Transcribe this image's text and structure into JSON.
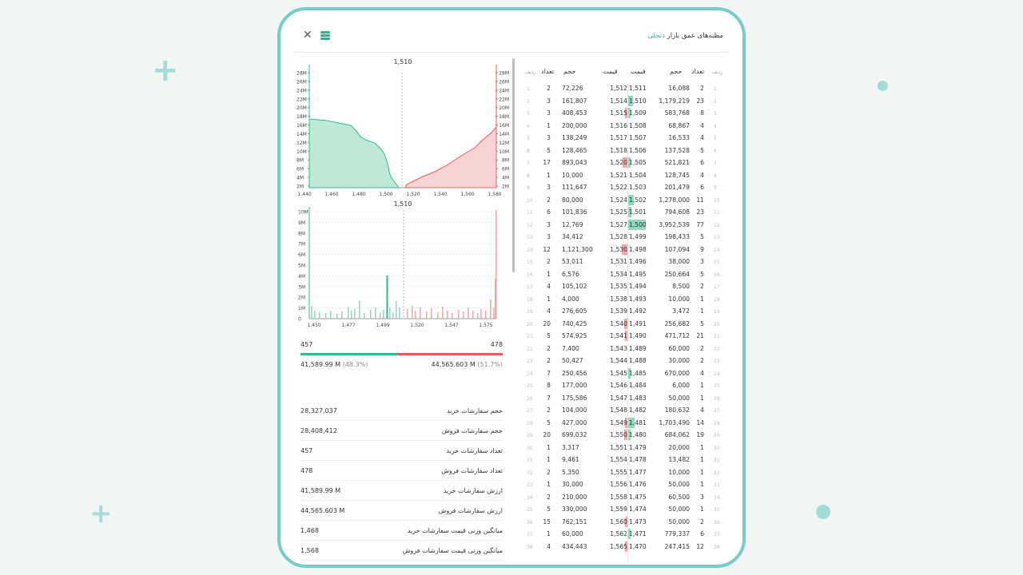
{
  "header": {
    "title_main": "مظنه‌های عمق بازار",
    "title_accent": "دنجلی"
  },
  "colors": {
    "buy": "#2ebd8b",
    "sell": "#e65c5c",
    "accent": "#77ccca"
  },
  "depth_chart": {
    "title": "1,510",
    "y_ticks": [
      "28M",
      "26M",
      "24M",
      "22M",
      "20M",
      "18M",
      "16M",
      "14M",
      "12M",
      "10M",
      "8M",
      "6M",
      "4M",
      "2M"
    ],
    "x_ticks": [
      "1,440",
      "1,460",
      "1,480",
      "1,500",
      "1,520",
      "1,540",
      "1,560",
      "1,580"
    ]
  },
  "volume_chart": {
    "title": "1,510",
    "y_ticks": [
      "10M",
      "9M",
      "8M",
      "7M",
      "6M",
      "5M",
      "4M",
      "3M",
      "2M",
      "1M",
      "0"
    ],
    "x_ticks": [
      "1,450",
      "1,477",
      "1,499",
      "1,520",
      "1,547",
      "1,575"
    ]
  },
  "summary": {
    "buy_count": "457",
    "sell_count": "478",
    "buy_value": "41,589.99 M",
    "buy_pct": "(48.3%)",
    "sell_value": "44,565.603 M",
    "sell_pct": "(51.7%)",
    "buy_ratio": 0.483
  },
  "stats": [
    {
      "label": "حجم سفارشات خرید",
      "value": "28,327,037"
    },
    {
      "label": "حجم سفارشات فروش",
      "value": "28,408,412"
    },
    {
      "label": "تعداد سفارشات خرید",
      "value": "457"
    },
    {
      "label": "تعداد سفارشات فروش",
      "value": "478"
    },
    {
      "label": "ارزش سفارشات خرید",
      "value": "41,589.99 M"
    },
    {
      "label": "ارزش سفارشات فروش",
      "value": "44,565.603 M"
    },
    {
      "label": "میانگین وزنی قیمت سفارشات خرید",
      "value": "1,468"
    },
    {
      "label": "میانگین وزنی قیمت سفارشات فروش",
      "value": "1,568"
    }
  ],
  "book_headers": {
    "sell_idx": "ردیف",
    "sell_count": "تعداد",
    "sell_volume": "حجم",
    "sell_price": "قیمت",
    "buy_price": "قیمت",
    "buy_volume": "حجم",
    "buy_count": "تعداد",
    "buy_idx": "ردیف"
  },
  "order_book": [
    {
      "i": "1",
      "sc": "2",
      "sv": "72,226",
      "sp": "1,512",
      "bp": "1,511",
      "bv": "16,088",
      "bc": "2",
      "sw": 0,
      "bw": 0
    },
    {
      "i": "2",
      "sc": "3",
      "sv": "161,807",
      "sp": "1,514",
      "bp": "1,510",
      "bv": "1,179,219",
      "bc": "23",
      "sw": 0,
      "bw": 6
    },
    {
      "i": "3",
      "sc": "3",
      "sv": "408,453",
      "sp": "1,515",
      "bp": "1,509",
      "bv": "583,768",
      "bc": "8",
      "sw": 3,
      "bw": 3
    },
    {
      "i": "4",
      "sc": "1",
      "sv": "200,000",
      "sp": "1,516",
      "bp": "1,508",
      "bv": "68,867",
      "bc": "4",
      "sw": 0,
      "bw": 0
    },
    {
      "i": "5",
      "sc": "3",
      "sv": "138,249",
      "sp": "1,517",
      "bp": "1,507",
      "bv": "16,533",
      "bc": "4",
      "sw": 0,
      "bw": 0
    },
    {
      "i": "6",
      "sc": "5",
      "sv": "128,465",
      "sp": "1,518",
      "bp": "1,506",
      "bv": "137,528",
      "bc": "5",
      "sw": 0,
      "bw": 0
    },
    {
      "i": "7",
      "sc": "17",
      "sv": "893,043",
      "sp": "1,520",
      "bp": "1,505",
      "bv": "521,821",
      "bc": "6",
      "sw": 6,
      "bw": 3
    },
    {
      "i": "8",
      "sc": "1",
      "sv": "10,000",
      "sp": "1,521",
      "bp": "1,504",
      "bv": "128,745",
      "bc": "4",
      "sw": 0,
      "bw": 0
    },
    {
      "i": "9",
      "sc": "3",
      "sv": "111,647",
      "sp": "1,522",
      "bp": "1,503",
      "bv": "201,479",
      "bc": "6",
      "sw": 0,
      "bw": 0
    },
    {
      "i": "10",
      "sc": "2",
      "sv": "80,000",
      "sp": "1,524",
      "bp": "1,502",
      "bv": "1,278,000",
      "bc": "11",
      "sw": 0,
      "bw": 7
    },
    {
      "i": "11",
      "sc": "6",
      "sv": "101,836",
      "sp": "1,525",
      "bp": "1,501",
      "bv": "794,608",
      "bc": "23",
      "sw": 0,
      "bw": 4
    },
    {
      "i": "12",
      "sc": "3",
      "sv": "12,769",
      "sp": "1,527",
      "bp": "1,500",
      "bv": "3,952,539",
      "bc": "77",
      "sw": 0,
      "bw": 22
    },
    {
      "i": "13",
      "sc": "3",
      "sv": "34,412",
      "sp": "1,528",
      "bp": "1,499",
      "bv": "198,433",
      "bc": "5",
      "sw": 0,
      "bw": 0
    },
    {
      "i": "14",
      "sc": "12",
      "sv": "1,121,300",
      "sp": "1,530",
      "bp": "1,498",
      "bv": "107,094",
      "bc": "9",
      "sw": 7,
      "bw": 0
    },
    {
      "i": "15",
      "sc": "2",
      "sv": "53,011",
      "sp": "1,531",
      "bp": "1,496",
      "bv": "38,000",
      "bc": "3",
      "sw": 0,
      "bw": 0
    },
    {
      "i": "16",
      "sc": "1",
      "sv": "6,576",
      "sp": "1,534",
      "bp": "1,495",
      "bv": "250,664",
      "bc": "5",
      "sw": 0,
      "bw": 0
    },
    {
      "i": "17",
      "sc": "4",
      "sv": "105,102",
      "sp": "1,535",
      "bp": "1,494",
      "bv": "8,500",
      "bc": "2",
      "sw": 0,
      "bw": 0
    },
    {
      "i": "18",
      "sc": "1",
      "sv": "4,000",
      "sp": "1,538",
      "bp": "1,493",
      "bv": "10,000",
      "bc": "1",
      "sw": 0,
      "bw": 0
    },
    {
      "i": "19",
      "sc": "4",
      "sv": "276,605",
      "sp": "1,539",
      "bp": "1,492",
      "bv": "3,472",
      "bc": "1",
      "sw": 0,
      "bw": 0
    },
    {
      "i": "20",
      "sc": "20",
      "sv": "740,425",
      "sp": "1,540",
      "bp": "1,491",
      "bv": "256,682",
      "bc": "5",
      "sw": 4,
      "bw": 0
    },
    {
      "i": "21",
      "sc": "5",
      "sv": "574,925",
      "sp": "1,541",
      "bp": "1,490",
      "bv": "471,712",
      "bc": "21",
      "sw": 3,
      "bw": 0
    },
    {
      "i": "22",
      "sc": "2",
      "sv": "7,400",
      "sp": "1,543",
      "bp": "1,489",
      "bv": "60,000",
      "bc": "2",
      "sw": 0,
      "bw": 0
    },
    {
      "i": "23",
      "sc": "2",
      "sv": "50,427",
      "sp": "1,544",
      "bp": "1,488",
      "bv": "30,000",
      "bc": "2",
      "sw": 0,
      "bw": 0
    },
    {
      "i": "24",
      "sc": "7",
      "sv": "250,456",
      "sp": "1,545",
      "bp": "1,485",
      "bv": "670,000",
      "bc": "4",
      "sw": 0,
      "bw": 3
    },
    {
      "i": "25",
      "sc": "8",
      "sv": "177,000",
      "sp": "1,546",
      "bp": "1,484",
      "bv": "6,000",
      "bc": "1",
      "sw": 0,
      "bw": 0
    },
    {
      "i": "26",
      "sc": "7",
      "sv": "175,586",
      "sp": "1,547",
      "bp": "1,483",
      "bv": "50,000",
      "bc": "1",
      "sw": 0,
      "bw": 0
    },
    {
      "i": "27",
      "sc": "2",
      "sv": "104,000",
      "sp": "1,548",
      "bp": "1,482",
      "bv": "180,632",
      "bc": "4",
      "sw": 0,
      "bw": 0
    },
    {
      "i": "28",
      "sc": "5",
      "sv": "427,000",
      "sp": "1,549",
      "bp": "1,481",
      "bv": "1,703,490",
      "bc": "14",
      "sw": 3,
      "bw": 8
    },
    {
      "i": "29",
      "sc": "20",
      "sv": "699,032",
      "sp": "1,550",
      "bp": "1,480",
      "bv": "684,062",
      "bc": "19",
      "sw": 4,
      "bw": 3
    },
    {
      "i": "30",
      "sc": "1",
      "sv": "3,317",
      "sp": "1,551",
      "bp": "1,479",
      "bv": "20,000",
      "bc": "1",
      "sw": 0,
      "bw": 0
    },
    {
      "i": "31",
      "sc": "1",
      "sv": "9,461",
      "sp": "1,554",
      "bp": "1,478",
      "bv": "13,482",
      "bc": "1",
      "sw": 0,
      "bw": 0
    },
    {
      "i": "32",
      "sc": "2",
      "sv": "5,350",
      "sp": "1,555",
      "bp": "1,477",
      "bv": "10,000",
      "bc": "1",
      "sw": 0,
      "bw": 0
    },
    {
      "i": "33",
      "sc": "1",
      "sv": "30,000",
      "sp": "1,556",
      "bp": "1,476",
      "bv": "50,000",
      "bc": "1",
      "sw": 0,
      "bw": 0
    },
    {
      "i": "34",
      "sc": "2",
      "sv": "210,000",
      "sp": "1,558",
      "bp": "1,475",
      "bv": "60,500",
      "bc": "3",
      "sw": 0,
      "bw": 0
    },
    {
      "i": "35",
      "sc": "5",
      "sv": "330,000",
      "sp": "1,559",
      "bp": "1,474",
      "bv": "50,000",
      "bc": "1",
      "sw": 0,
      "bw": 0
    },
    {
      "i": "36",
      "sc": "15",
      "sv": "762,151",
      "sp": "1,560",
      "bp": "1,473",
      "bv": "50,000",
      "bc": "2",
      "sw": 3,
      "bw": 0
    },
    {
      "i": "37",
      "sc": "1",
      "sv": "60,000",
      "sp": "1,562",
      "bp": "1,471",
      "bv": "779,337",
      "bc": "6",
      "sw": 0,
      "bw": 3
    },
    {
      "i": "38",
      "sc": "4",
      "sv": "434,443",
      "sp": "1,565",
      "bp": "1,470",
      "bv": "247,415",
      "bc": "12",
      "sw": 3,
      "bw": 0
    }
  ]
}
